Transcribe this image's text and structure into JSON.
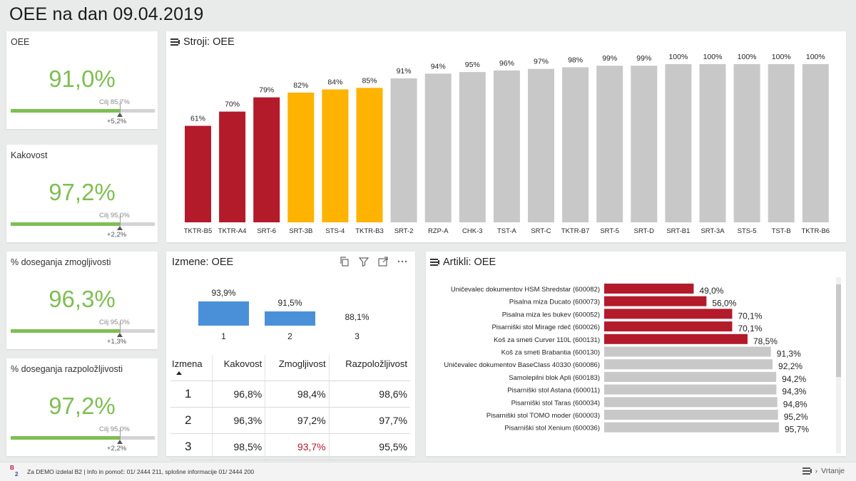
{
  "page": {
    "title": "OEE na dan 09.04.2019"
  },
  "kpis": [
    {
      "title": "OEE",
      "value": "91,0%",
      "target_label": "Cilj 85,7%",
      "delta": "+5,2%",
      "fill_pct": 91.0,
      "target_pct": 85.7
    },
    {
      "title": "Kakovost",
      "value": "97,2%",
      "target_label": "Cilj 95,0%",
      "delta": "+2,2%",
      "fill_pct": 97.2,
      "target_pct": 95.0
    },
    {
      "title": "% doseganja zmogljivosti",
      "value": "96,3%",
      "target_label": "Cilj 95,0%",
      "delta": "+1,3%",
      "fill_pct": 96.3,
      "target_pct": 95.0
    },
    {
      "title": "% doseganja razpoložljivosti",
      "value": "97,2%",
      "target_label": "Cilj 95,0%",
      "delta": "+2,2%",
      "fill_pct": 97.2,
      "target_pct": 95.0
    }
  ],
  "stroji": {
    "title": "Stroji: OEE"
  },
  "izmene": {
    "title": "Izmene: OEE",
    "table": {
      "headers": [
        "Izmena",
        "Kakovost",
        "Zmogljivost",
        "Razpoložljivost"
      ],
      "rows": [
        [
          "1",
          "96,8%",
          "98,4%",
          "98,6%"
        ],
        [
          "2",
          "96,3%",
          "97,2%",
          "97,7%"
        ],
        [
          "3",
          "98,5%",
          "93,7%",
          "95,5%"
        ]
      ]
    }
  },
  "artikli": {
    "title": "Artikli: OEE"
  },
  "colors": {
    "good": "#7fbe52",
    "red": "#b31b2b",
    "yellow": "#fdb300",
    "gray": "#c8c8c8",
    "blue": "#4a90d9"
  },
  "footer": {
    "logo_top": "B",
    "logo_bottom": "2",
    "text": "Za DEMO izdelal B2 | Info in pomoč:  01/ 2444 211, splošne informacije 01/ 2444 200",
    "nav_label": "Vrtanje"
  },
  "chart_data": [
    {
      "type": "bar",
      "title": "Stroji: OEE",
      "categories": [
        "TKTR-B5",
        "TKTR-A4",
        "SRT-6",
        "SRT-3B",
        "STS-4",
        "TKTR-B3",
        "SRT-2",
        "RZP-A",
        "CHK-3",
        "TST-A",
        "SRT-C",
        "TKTR-B7",
        "SRT-5",
        "SRT-D",
        "SRT-B1",
        "SRT-3A",
        "STS-5",
        "TST-B",
        "TKTR-B6"
      ],
      "values": [
        61,
        70,
        79,
        82,
        84,
        85,
        91,
        94,
        95,
        96,
        97,
        98,
        99,
        99,
        100,
        100,
        100,
        100,
        100
      ],
      "labels": [
        "61%",
        "70%",
        "79%",
        "82%",
        "84%",
        "85%",
        "91%",
        "94%",
        "95%",
        "96%",
        "97%",
        "98%",
        "99%",
        "99%",
        "100%",
        "100%",
        "100%",
        "100%",
        "100%"
      ],
      "colors": [
        "red",
        "red",
        "red",
        "yellow",
        "yellow",
        "yellow",
        "gray",
        "gray",
        "gray",
        "gray",
        "gray",
        "gray",
        "gray",
        "gray",
        "gray",
        "gray",
        "gray",
        "gray",
        "gray"
      ],
      "ylim": [
        0,
        100
      ]
    },
    {
      "type": "bar",
      "title": "Izmene: OEE",
      "categories": [
        "1",
        "2",
        "3"
      ],
      "values": [
        93.9,
        91.5,
        88.1
      ],
      "labels": [
        "93,9%",
        "91,5%",
        "88,1%"
      ],
      "ylim": [
        88.1,
        93.9
      ]
    },
    {
      "type": "bar",
      "orientation": "horizontal",
      "title": "Artikli: OEE",
      "categories": [
        "Uničevalec dokumentov HSM Shredstar (600082)",
        "Pisalna miza Ducato (600073)",
        "Pisalna miza les bukev (600052)",
        "Pisarniški stol Mirage rdeč (600026)",
        "Koš za smeti Curver 110L (600131)",
        "Koš za smeti Brabantia (600130)",
        "Uničevalec dokumentov BaseClass 40330 (600086)",
        "Samolepilni blok Apli (600183)",
        "Pisarniški stol Astana (600011)",
        "Pisarniški stol Taras (600034)",
        "Pisarniški stol TOMO moder (600003)",
        "Pisarniški stol Xenium (600036)"
      ],
      "values": [
        49.0,
        56.0,
        70.1,
        70.1,
        78.5,
        91.3,
        92.2,
        94.2,
        94.3,
        94.8,
        95.2,
        95.7
      ],
      "labels": [
        "49,0%",
        "56,0%",
        "70,1%",
        "70,1%",
        "78,5%",
        "91,3%",
        "92,2%",
        "94,2%",
        "94,3%",
        "94,8%",
        "95,2%",
        "95,7%"
      ],
      "colors": [
        "red",
        "red",
        "red",
        "red",
        "red",
        "gray",
        "gray",
        "gray",
        "gray",
        "gray",
        "gray",
        "gray"
      ],
      "xlim": [
        0,
        100
      ]
    }
  ]
}
